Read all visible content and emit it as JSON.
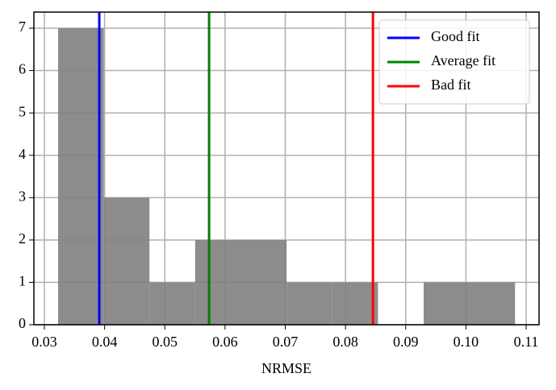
{
  "chart_data": {
    "type": "histogram",
    "xlabel": "NRMSE",
    "bins": [
      0.03228,
      0.03987,
      0.04745,
      0.05504,
      0.06263,
      0.07022,
      0.0778,
      0.08539,
      0.09298,
      0.10056,
      0.10815
    ],
    "counts": [
      7,
      3,
      1,
      2,
      2,
      1,
      1,
      0,
      1,
      1
    ],
    "color": "#808080",
    "vlines": [
      {
        "name": "Good fit",
        "color": "#0000ff",
        "x": 0.03912
      },
      {
        "name": "Average fit",
        "color": "#008000",
        "x": 0.05735
      },
      {
        "name": "Bad fit",
        "color": "#ff0000",
        "x": 0.08456
      }
    ],
    "xlim": [
      0.02826,
      0.11214
    ],
    "xticks": [
      0.03,
      0.04,
      0.05,
      0.06,
      0.07,
      0.08,
      0.09,
      {
        "value": 0.1,
        "label": "0.10"
      },
      0.11
    ],
    "ylim": [
      0,
      7.38
    ],
    "yticks": [
      0,
      1,
      2,
      3,
      4,
      5,
      6,
      7
    ],
    "grid": true,
    "legend": "upper right"
  }
}
